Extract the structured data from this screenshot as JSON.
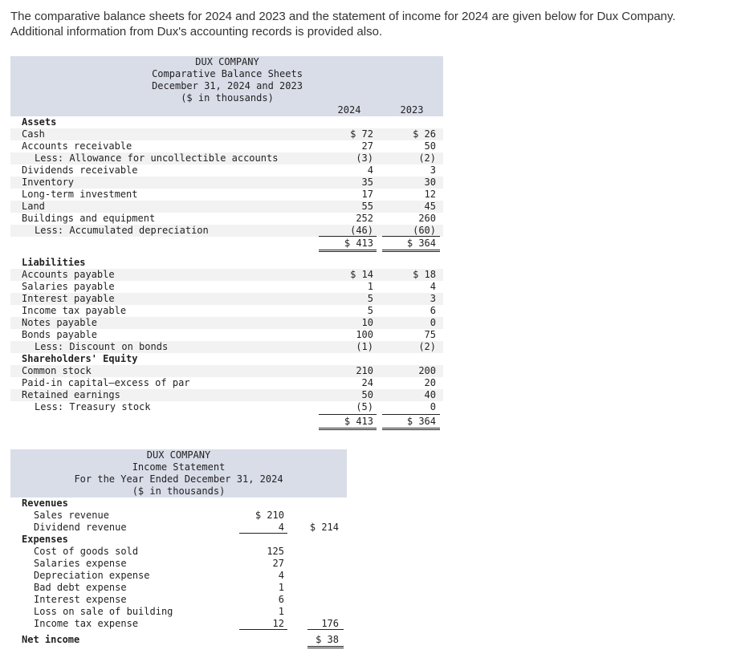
{
  "intro": "The comparative balance sheets for 2024 and 2023 and the statement of income for 2024 are given below for Dux Company. Additional information from Dux's accounting records is provided also.",
  "balance_sheet": {
    "header": [
      "DUX COMPANY",
      "Comparative Balance Sheets",
      "December 31, 2024 and 2023",
      "($ in thousands)"
    ],
    "col_2024": "2024",
    "col_2023": "2023",
    "assets_heading": "Assets",
    "assets": [
      {
        "label": "Cash",
        "indent": 0,
        "v2024": "$ 72",
        "v2023": "$ 26"
      },
      {
        "label": "Accounts receivable",
        "indent": 0,
        "v2024": "27",
        "v2023": "50"
      },
      {
        "label": "Less: Allowance for uncollectible accounts",
        "indent": 1,
        "v2024": "(3)",
        "v2023": "(2)"
      },
      {
        "label": "Dividends receivable",
        "indent": 0,
        "v2024": "4",
        "v2023": "3"
      },
      {
        "label": "Inventory",
        "indent": 0,
        "v2024": "35",
        "v2023": "30"
      },
      {
        "label": "Long-term investment",
        "indent": 0,
        "v2024": "17",
        "v2023": "12"
      },
      {
        "label": "Land",
        "indent": 0,
        "v2024": "55",
        "v2023": "45"
      },
      {
        "label": "Buildings and equipment",
        "indent": 0,
        "v2024": "252",
        "v2023": "260"
      },
      {
        "label": "Less: Accumulated depreciation",
        "indent": 1,
        "v2024": "(46)",
        "v2023": "(60)"
      }
    ],
    "assets_total": {
      "v2024": "$ 413",
      "v2023": "$ 364"
    },
    "liabilities_heading": "Liabilities",
    "liabilities": [
      {
        "label": "Accounts payable",
        "indent": 0,
        "v2024": "$ 14",
        "v2023": "$ 18"
      },
      {
        "label": "Salaries payable",
        "indent": 0,
        "v2024": "1",
        "v2023": "4"
      },
      {
        "label": "Interest payable",
        "indent": 0,
        "v2024": "5",
        "v2023": "3"
      },
      {
        "label": "Income tax payable",
        "indent": 0,
        "v2024": "5",
        "v2023": "6"
      },
      {
        "label": "Notes payable",
        "indent": 0,
        "v2024": "10",
        "v2023": "0"
      },
      {
        "label": "Bonds payable",
        "indent": 0,
        "v2024": "100",
        "v2023": "75"
      },
      {
        "label": "Less: Discount on bonds",
        "indent": 1,
        "v2024": "(1)",
        "v2023": "(2)"
      }
    ],
    "equity_heading": "Shareholders' Equity",
    "equity": [
      {
        "label": "Common stock",
        "indent": 0,
        "v2024": "210",
        "v2023": "200"
      },
      {
        "label": "Paid-in capital—excess of par",
        "indent": 0,
        "v2024": "24",
        "v2023": "20"
      },
      {
        "label": "Retained earnings",
        "indent": 0,
        "v2024": "50",
        "v2023": "40"
      },
      {
        "label": "Less: Treasury stock",
        "indent": 1,
        "v2024": "(5)",
        "v2023": "0"
      }
    ],
    "liab_total": {
      "v2024": "$ 413",
      "v2023": "$ 364"
    }
  },
  "income_statement": {
    "header": [
      "DUX COMPANY",
      "Income Statement",
      "For the Year Ended December 31, 2024",
      "($ in thousands)"
    ],
    "revenues_heading": "Revenues",
    "revenues": [
      {
        "label": "Sales revenue",
        "amount": "$ 210"
      },
      {
        "label": "Dividend revenue",
        "amount": "4"
      }
    ],
    "revenues_total": "$ 214",
    "expenses_heading": "Expenses",
    "expenses": [
      {
        "label": "Cost of goods sold",
        "amount": "125"
      },
      {
        "label": "Salaries expense",
        "amount": "27"
      },
      {
        "label": "Depreciation expense",
        "amount": "4"
      },
      {
        "label": "Bad debt expense",
        "amount": "1"
      },
      {
        "label": "Interest expense",
        "amount": "6"
      },
      {
        "label": "Loss on sale of building",
        "amount": "1"
      },
      {
        "label": "Income tax expense",
        "amount": "12"
      }
    ],
    "expenses_total": "176",
    "net_income_label": "Net income",
    "net_income": "$ 38"
  }
}
